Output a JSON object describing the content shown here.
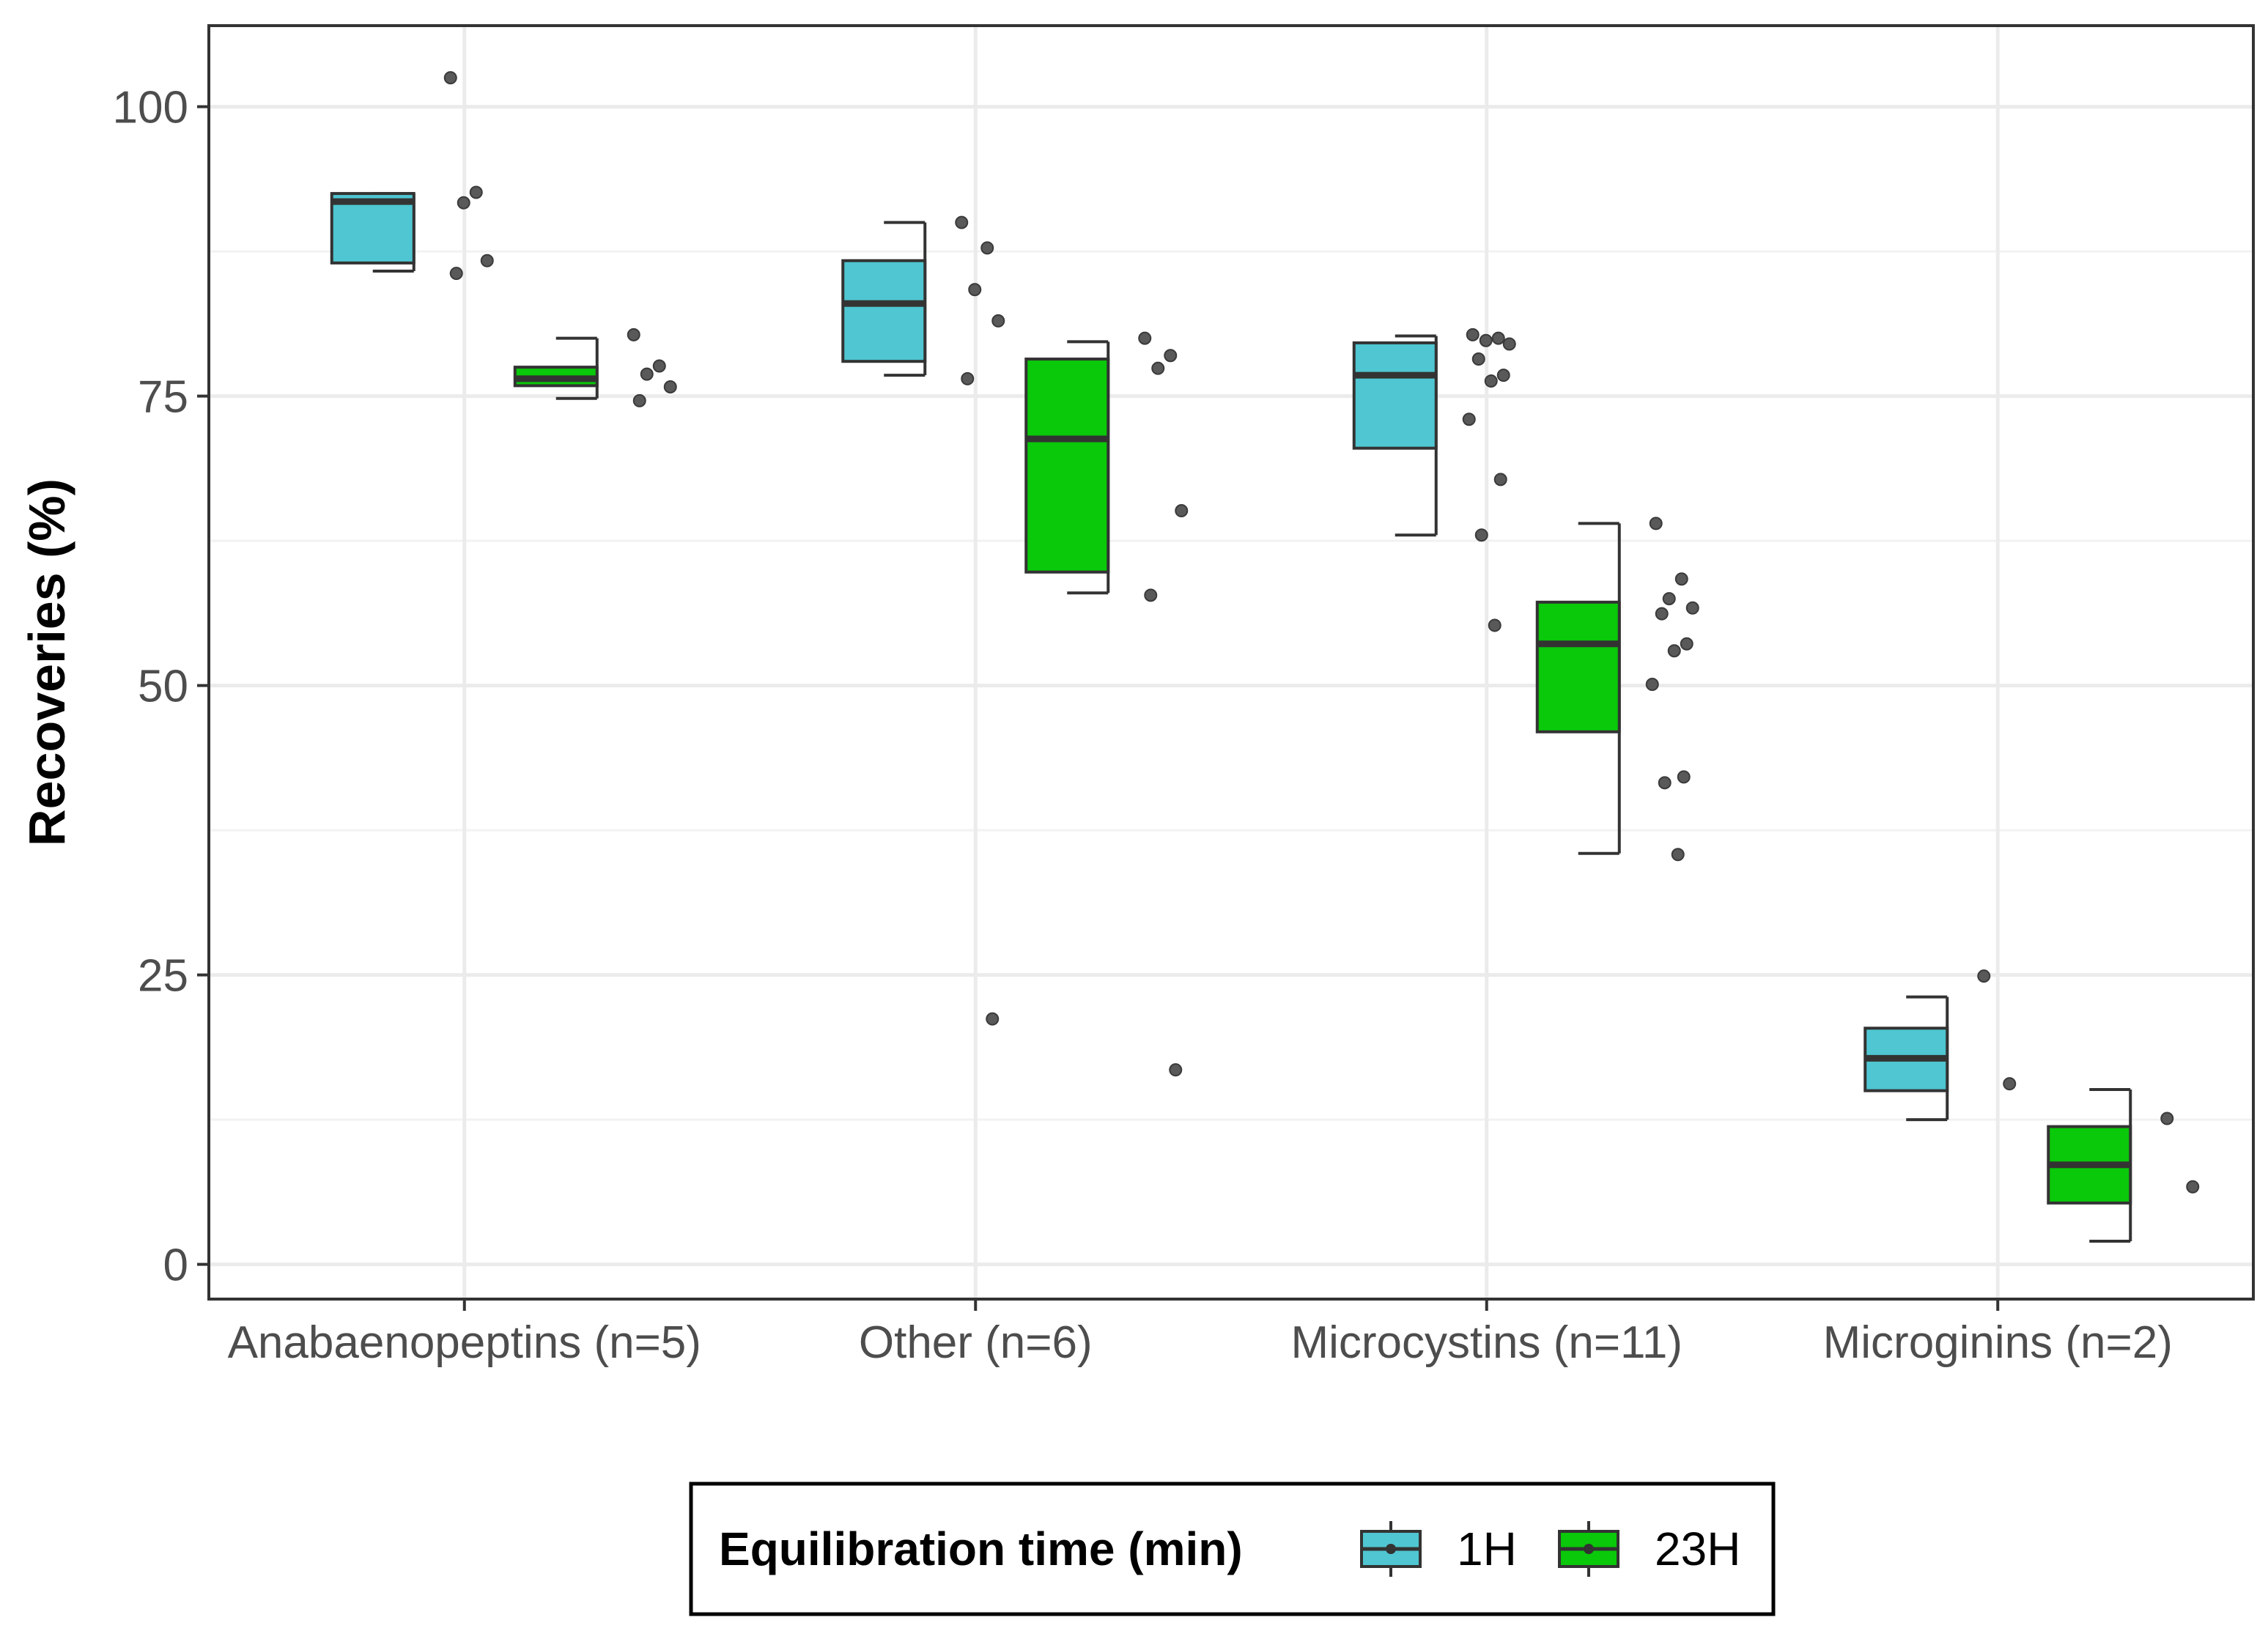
{
  "chart_data": {
    "type": "boxplot",
    "title": "",
    "xlabel": "",
    "ylabel": "Recoveries (%)",
    "ylim": [
      -3,
      107
    ],
    "yticks": [
      0,
      25,
      50,
      75,
      100
    ],
    "grid": true,
    "categories": [
      "Anabaenopeptins (n=5)",
      "Other (n=6)",
      "Microcystins (n=11)",
      "Microginins (n=2)"
    ],
    "legend": {
      "title": "Equilibration time (min)",
      "position": "bottom",
      "entries": [
        "1H",
        "23H"
      ]
    },
    "colors": {
      "1H": "#4fc6d1",
      "23H": "#0ac80a",
      "point": "#595959",
      "grid": "#ebebeb",
      "outline": "#333333"
    },
    "series": [
      {
        "name": "1H",
        "boxes": [
          {
            "category": "Anabaenopeptins (n=5)",
            "whisker_low": 85.8,
            "q1": 86.5,
            "median": 91.8,
            "q3": 92.5,
            "whisker_high": 92.5,
            "points": [
              102.5,
              92.6,
              91.7,
              86.7,
              85.6
            ]
          },
          {
            "category": "Other (n=6)",
            "whisker_low": 76.8,
            "q1": 78.0,
            "median": 83.0,
            "q3": 86.7,
            "whisker_high": 90.0,
            "points": [
              90.0,
              87.8,
              84.2,
              81.5,
              76.5,
              21.2
            ]
          },
          {
            "category": "Microcystins (n=11)",
            "whisker_low": 63.0,
            "q1": 70.5,
            "median": 76.8,
            "q3": 79.6,
            "whisker_high": 80.2,
            "points": [
              80.3,
              80.0,
              79.8,
              79.5,
              78.2,
              76.8,
              76.3,
              73.0,
              67.8,
              63.0,
              55.2
            ]
          },
          {
            "category": "Microginins (n=2)",
            "whisker_low": 12.5,
            "q1": 15.0,
            "median": 17.8,
            "q3": 20.4,
            "whisker_high": 23.1,
            "points": [
              24.9,
              15.6
            ]
          }
        ]
      },
      {
        "name": "23H",
        "boxes": [
          {
            "category": "Anabaenopeptins (n=5)",
            "whisker_low": 74.8,
            "q1": 75.9,
            "median": 76.5,
            "q3": 77.5,
            "whisker_high": 80.0,
            "points": [
              80.3,
              77.6,
              76.9,
              75.8,
              74.6
            ]
          },
          {
            "category": "Other (n=6)",
            "whisker_low": 58.0,
            "q1": 59.8,
            "median": 71.3,
            "q3": 78.2,
            "whisker_high": 79.7,
            "points": [
              80.0,
              78.5,
              77.4,
              65.1,
              57.8,
              16.8
            ]
          },
          {
            "category": "Microcystins (n=11)",
            "whisker_low": 35.5,
            "q1": 46.0,
            "median": 53.6,
            "q3": 57.2,
            "whisker_high": 64.0,
            "points": [
              64.0,
              59.2,
              57.5,
              56.7,
              56.2,
              53.6,
              53.0,
              50.1,
              42.1,
              41.6,
              35.4
            ]
          },
          {
            "category": "Microginins (n=2)",
            "whisker_low": 2.0,
            "q1": 5.3,
            "median": 8.6,
            "q3": 11.9,
            "whisker_high": 15.1,
            "points": [
              12.6,
              6.7
            ]
          }
        ]
      }
    ]
  }
}
